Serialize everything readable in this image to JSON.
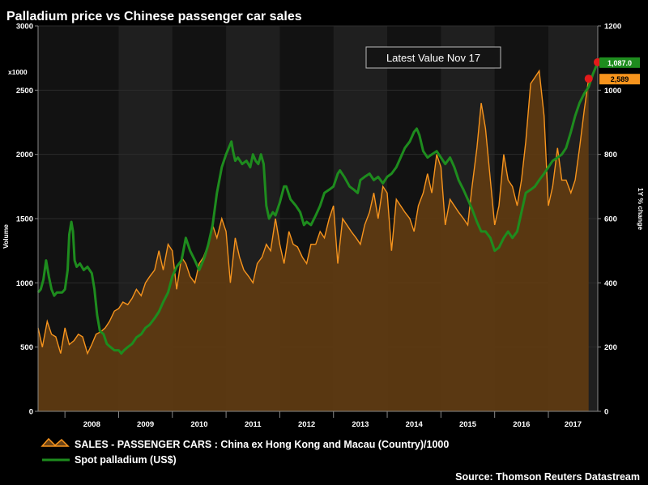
{
  "chart_data": {
    "type": "area",
    "title": "Palladium price vs Chinese passenger car sales",
    "annotation": "Latest Value Nov 17",
    "source": "Source: Thomson Reuters Datastream",
    "left_axis": {
      "label": "Volume",
      "unit_note": "x1000",
      "ticks": [
        "0",
        "500",
        "1000",
        "1500",
        "2000",
        "2500",
        "3000"
      ],
      "range": [
        0,
        3000
      ]
    },
    "right_axis": {
      "label": "1Y % change",
      "ticks": [
        "0",
        "200",
        "400",
        "600",
        "800",
        "1000",
        "1200"
      ],
      "range": [
        0,
        1200
      ]
    },
    "x_axis": {
      "years": [
        "2008",
        "2009",
        "2010",
        "2011",
        "2012",
        "2013",
        "2014",
        "2015",
        "2016",
        "2017"
      ],
      "range": [
        2007.5,
        2017.92
      ]
    },
    "series": [
      {
        "name": "SALES - PASSENGER CARS : China ex Hong Kong and Macau (Country)/1000",
        "axis": "left",
        "color": "#f7941d",
        "latest_label": "2,589",
        "points": [
          [
            2007.5,
            650
          ],
          [
            2007.58,
            500
          ],
          [
            2007.67,
            700
          ],
          [
            2007.75,
            600
          ],
          [
            2007.83,
            580
          ],
          [
            2007.92,
            450
          ],
          [
            2008.0,
            650
          ],
          [
            2008.08,
            520
          ],
          [
            2008.17,
            550
          ],
          [
            2008.25,
            600
          ],
          [
            2008.33,
            580
          ],
          [
            2008.42,
            450
          ],
          [
            2008.5,
            520
          ],
          [
            2008.58,
            600
          ],
          [
            2008.67,
            620
          ],
          [
            2008.75,
            650
          ],
          [
            2008.83,
            700
          ],
          [
            2008.92,
            780
          ],
          [
            2009.0,
            800
          ],
          [
            2009.08,
            850
          ],
          [
            2009.17,
            830
          ],
          [
            2009.25,
            880
          ],
          [
            2009.33,
            950
          ],
          [
            2009.42,
            900
          ],
          [
            2009.5,
            1000
          ],
          [
            2009.58,
            1050
          ],
          [
            2009.67,
            1100
          ],
          [
            2009.75,
            1250
          ],
          [
            2009.83,
            1100
          ],
          [
            2009.92,
            1300
          ],
          [
            2010.0,
            1250
          ],
          [
            2010.08,
            950
          ],
          [
            2010.17,
            1200
          ],
          [
            2010.25,
            1150
          ],
          [
            2010.33,
            1050
          ],
          [
            2010.42,
            1000
          ],
          [
            2010.5,
            1150
          ],
          [
            2010.58,
            1200
          ],
          [
            2010.67,
            1300
          ],
          [
            2010.75,
            1450
          ],
          [
            2010.83,
            1350
          ],
          [
            2010.92,
            1500
          ],
          [
            2011.0,
            1400
          ],
          [
            2011.08,
            1000
          ],
          [
            2011.17,
            1350
          ],
          [
            2011.25,
            1200
          ],
          [
            2011.33,
            1100
          ],
          [
            2011.42,
            1050
          ],
          [
            2011.5,
            1000
          ],
          [
            2011.58,
            1150
          ],
          [
            2011.67,
            1200
          ],
          [
            2011.75,
            1300
          ],
          [
            2011.83,
            1250
          ],
          [
            2011.92,
            1500
          ],
          [
            2012.0,
            1300
          ],
          [
            2012.08,
            1150
          ],
          [
            2012.17,
            1400
          ],
          [
            2012.25,
            1300
          ],
          [
            2012.33,
            1280
          ],
          [
            2012.42,
            1200
          ],
          [
            2012.5,
            1150
          ],
          [
            2012.58,
            1300
          ],
          [
            2012.67,
            1300
          ],
          [
            2012.75,
            1400
          ],
          [
            2012.83,
            1350
          ],
          [
            2012.92,
            1500
          ],
          [
            2013.0,
            1600
          ],
          [
            2013.08,
            1150
          ],
          [
            2013.17,
            1500
          ],
          [
            2013.25,
            1450
          ],
          [
            2013.33,
            1400
          ],
          [
            2013.42,
            1350
          ],
          [
            2013.5,
            1300
          ],
          [
            2013.58,
            1450
          ],
          [
            2013.67,
            1550
          ],
          [
            2013.75,
            1700
          ],
          [
            2013.83,
            1500
          ],
          [
            2013.92,
            1750
          ],
          [
            2014.0,
            1700
          ],
          [
            2014.08,
            1250
          ],
          [
            2014.17,
            1650
          ],
          [
            2014.25,
            1600
          ],
          [
            2014.33,
            1550
          ],
          [
            2014.42,
            1500
          ],
          [
            2014.5,
            1400
          ],
          [
            2014.58,
            1600
          ],
          [
            2014.67,
            1700
          ],
          [
            2014.75,
            1850
          ],
          [
            2014.83,
            1700
          ],
          [
            2014.92,
            2000
          ],
          [
            2015.0,
            1900
          ],
          [
            2015.08,
            1450
          ],
          [
            2015.17,
            1650
          ],
          [
            2015.25,
            1600
          ],
          [
            2015.33,
            1550
          ],
          [
            2015.42,
            1500
          ],
          [
            2015.5,
            1450
          ],
          [
            2015.58,
            1750
          ],
          [
            2015.67,
            2050
          ],
          [
            2015.75,
            2400
          ],
          [
            2015.83,
            2200
          ],
          [
            2015.92,
            1800
          ],
          [
            2016.0,
            1450
          ],
          [
            2016.08,
            1600
          ],
          [
            2016.17,
            2000
          ],
          [
            2016.25,
            1800
          ],
          [
            2016.33,
            1750
          ],
          [
            2016.42,
            1600
          ],
          [
            2016.5,
            1800
          ],
          [
            2016.58,
            2100
          ],
          [
            2016.67,
            2550
          ],
          [
            2016.75,
            2600
          ],
          [
            2016.83,
            2650
          ],
          [
            2016.92,
            2300
          ],
          [
            2017.0,
            1600
          ],
          [
            2017.08,
            1750
          ],
          [
            2017.17,
            2050
          ],
          [
            2017.25,
            1800
          ],
          [
            2017.33,
            1800
          ],
          [
            2017.42,
            1700
          ],
          [
            2017.5,
            1800
          ],
          [
            2017.58,
            2050
          ],
          [
            2017.67,
            2350
          ],
          [
            2017.75,
            2589
          ]
        ]
      },
      {
        "name": "Spot palladium (US$)",
        "axis": "right",
        "color": "#1e8c1e",
        "latest_label": "1,087.0",
        "points": [
          [
            2007.5,
            370
          ],
          [
            2007.55,
            380
          ],
          [
            2007.6,
            410
          ],
          [
            2007.65,
            470
          ],
          [
            2007.7,
            420
          ],
          [
            2007.75,
            380
          ],
          [
            2007.8,
            360
          ],
          [
            2007.85,
            370
          ],
          [
            2007.9,
            370
          ],
          [
            2007.95,
            370
          ],
          [
            2008.0,
            380
          ],
          [
            2008.05,
            440
          ],
          [
            2008.08,
            550
          ],
          [
            2008.12,
            590
          ],
          [
            2008.15,
            560
          ],
          [
            2008.18,
            470
          ],
          [
            2008.22,
            450
          ],
          [
            2008.28,
            460
          ],
          [
            2008.35,
            440
          ],
          [
            2008.42,
            450
          ],
          [
            2008.5,
            430
          ],
          [
            2008.55,
            380
          ],
          [
            2008.6,
            300
          ],
          [
            2008.65,
            250
          ],
          [
            2008.72,
            240
          ],
          [
            2008.78,
            210
          ],
          [
            2008.85,
            200
          ],
          [
            2008.92,
            190
          ],
          [
            2009.0,
            190
          ],
          [
            2009.05,
            180
          ],
          [
            2009.1,
            190
          ],
          [
            2009.17,
            200
          ],
          [
            2009.25,
            210
          ],
          [
            2009.33,
            230
          ],
          [
            2009.42,
            240
          ],
          [
            2009.5,
            260
          ],
          [
            2009.58,
            270
          ],
          [
            2009.67,
            290
          ],
          [
            2009.75,
            310
          ],
          [
            2009.83,
            340
          ],
          [
            2009.92,
            370
          ],
          [
            2010.0,
            420
          ],
          [
            2010.08,
            450
          ],
          [
            2010.17,
            470
          ],
          [
            2010.25,
            540
          ],
          [
            2010.33,
            500
          ],
          [
            2010.42,
            470
          ],
          [
            2010.5,
            440
          ],
          [
            2010.55,
            460
          ],
          [
            2010.6,
            480
          ],
          [
            2010.67,
            520
          ],
          [
            2010.75,
            580
          ],
          [
            2010.83,
            680
          ],
          [
            2010.92,
            760
          ],
          [
            2011.0,
            800
          ],
          [
            2011.05,
            820
          ],
          [
            2011.1,
            840
          ],
          [
            2011.13,
            810
          ],
          [
            2011.17,
            780
          ],
          [
            2011.22,
            790
          ],
          [
            2011.3,
            770
          ],
          [
            2011.38,
            780
          ],
          [
            2011.45,
            760
          ],
          [
            2011.5,
            800
          ],
          [
            2011.55,
            780
          ],
          [
            2011.6,
            770
          ],
          [
            2011.65,
            800
          ],
          [
            2011.7,
            770
          ],
          [
            2011.75,
            640
          ],
          [
            2011.8,
            600
          ],
          [
            2011.87,
            620
          ],
          [
            2011.92,
            610
          ],
          [
            2012.0,
            650
          ],
          [
            2012.08,
            700
          ],
          [
            2012.12,
            700
          ],
          [
            2012.2,
            660
          ],
          [
            2012.3,
            640
          ],
          [
            2012.38,
            620
          ],
          [
            2012.45,
            580
          ],
          [
            2012.5,
            590
          ],
          [
            2012.58,
            580
          ],
          [
            2012.67,
            610
          ],
          [
            2012.75,
            640
          ],
          [
            2012.83,
            680
          ],
          [
            2012.92,
            690
          ],
          [
            2013.0,
            700
          ],
          [
            2013.08,
            740
          ],
          [
            2013.12,
            750
          ],
          [
            2013.2,
            730
          ],
          [
            2013.3,
            700
          ],
          [
            2013.38,
            690
          ],
          [
            2013.45,
            680
          ],
          [
            2013.5,
            720
          ],
          [
            2013.58,
            730
          ],
          [
            2013.67,
            740
          ],
          [
            2013.75,
            720
          ],
          [
            2013.83,
            730
          ],
          [
            2013.92,
            710
          ],
          [
            2014.0,
            730
          ],
          [
            2014.08,
            740
          ],
          [
            2014.17,
            760
          ],
          [
            2014.25,
            790
          ],
          [
            2014.33,
            820
          ],
          [
            2014.42,
            840
          ],
          [
            2014.5,
            870
          ],
          [
            2014.55,
            880
          ],
          [
            2014.6,
            860
          ],
          [
            2014.67,
            810
          ],
          [
            2014.75,
            790
          ],
          [
            2014.83,
            800
          ],
          [
            2014.92,
            810
          ],
          [
            2015.0,
            790
          ],
          [
            2015.08,
            770
          ],
          [
            2015.17,
            790
          ],
          [
            2015.25,
            760
          ],
          [
            2015.33,
            720
          ],
          [
            2015.42,
            690
          ],
          [
            2015.5,
            660
          ],
          [
            2015.58,
            630
          ],
          [
            2015.67,
            590
          ],
          [
            2015.75,
            560
          ],
          [
            2015.83,
            560
          ],
          [
            2015.92,
            540
          ],
          [
            2016.0,
            500
          ],
          [
            2016.08,
            510
          ],
          [
            2016.17,
            540
          ],
          [
            2016.25,
            560
          ],
          [
            2016.33,
            540
          ],
          [
            2016.42,
            560
          ],
          [
            2016.5,
            620
          ],
          [
            2016.58,
            680
          ],
          [
            2016.67,
            690
          ],
          [
            2016.75,
            700
          ],
          [
            2016.83,
            720
          ],
          [
            2016.92,
            740
          ],
          [
            2017.0,
            760
          ],
          [
            2017.08,
            780
          ],
          [
            2017.17,
            790
          ],
          [
            2017.25,
            800
          ],
          [
            2017.33,
            820
          ],
          [
            2017.42,
            870
          ],
          [
            2017.5,
            920
          ],
          [
            2017.58,
            960
          ],
          [
            2017.67,
            990
          ],
          [
            2017.75,
            1010
          ],
          [
            2017.83,
            1050
          ],
          [
            2017.92,
            1087
          ]
        ]
      }
    ]
  }
}
